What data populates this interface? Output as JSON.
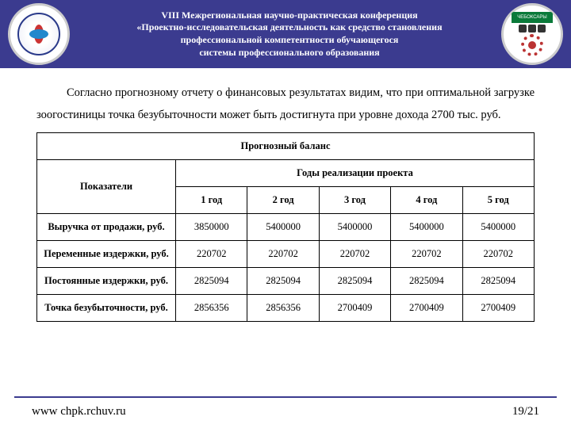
{
  "header": {
    "line1": "VIII Межрегиональная научно-практическая конференция",
    "line2": "«Проектно-исследовательская деятельность как средство становления",
    "line3": "профессиональной компетентности обучающегося",
    "line4": "системы профессионального образования",
    "logo_right_text": "ЧЕБОКСАРЫ"
  },
  "intro_text": "Согласно прогнозному отчету о финансовых результатах видим, что при оптимальной загрузке зоогостиницы точка безубыточности может быть достигнута при уровне дохода 2700 тыс. руб.",
  "table": {
    "caption": "Прогнозный баланс",
    "header_indicators": "Показатели",
    "header_years": "Годы реализации проекта",
    "year_labels": [
      "1 год",
      "2 год",
      "3 год",
      "4 год",
      "5 год"
    ],
    "rows": [
      {
        "label": "Выручка от продажи, руб.",
        "values": [
          "3850000",
          "5400000",
          "5400000",
          "5400000",
          "5400000"
        ]
      },
      {
        "label": "Переменные издержки, руб.",
        "values": [
          "220702",
          "220702",
          "220702",
          "220702",
          "220702"
        ]
      },
      {
        "label": "Постоянные издержки, руб.",
        "values": [
          "2825094",
          "2825094",
          "2825094",
          "2825094",
          "2825094"
        ]
      },
      {
        "label": "Точка безубыточности, руб.",
        "values": [
          "2856356",
          "2856356",
          "2700409",
          "2700409",
          "2700409"
        ]
      }
    ]
  },
  "footer": {
    "url": "www chpk.rchuv.ru",
    "page": "19/21"
  },
  "colors": {
    "header_bg": "#3b3b8f",
    "border": "#000000",
    "footer_line": "#3b3b8f"
  }
}
